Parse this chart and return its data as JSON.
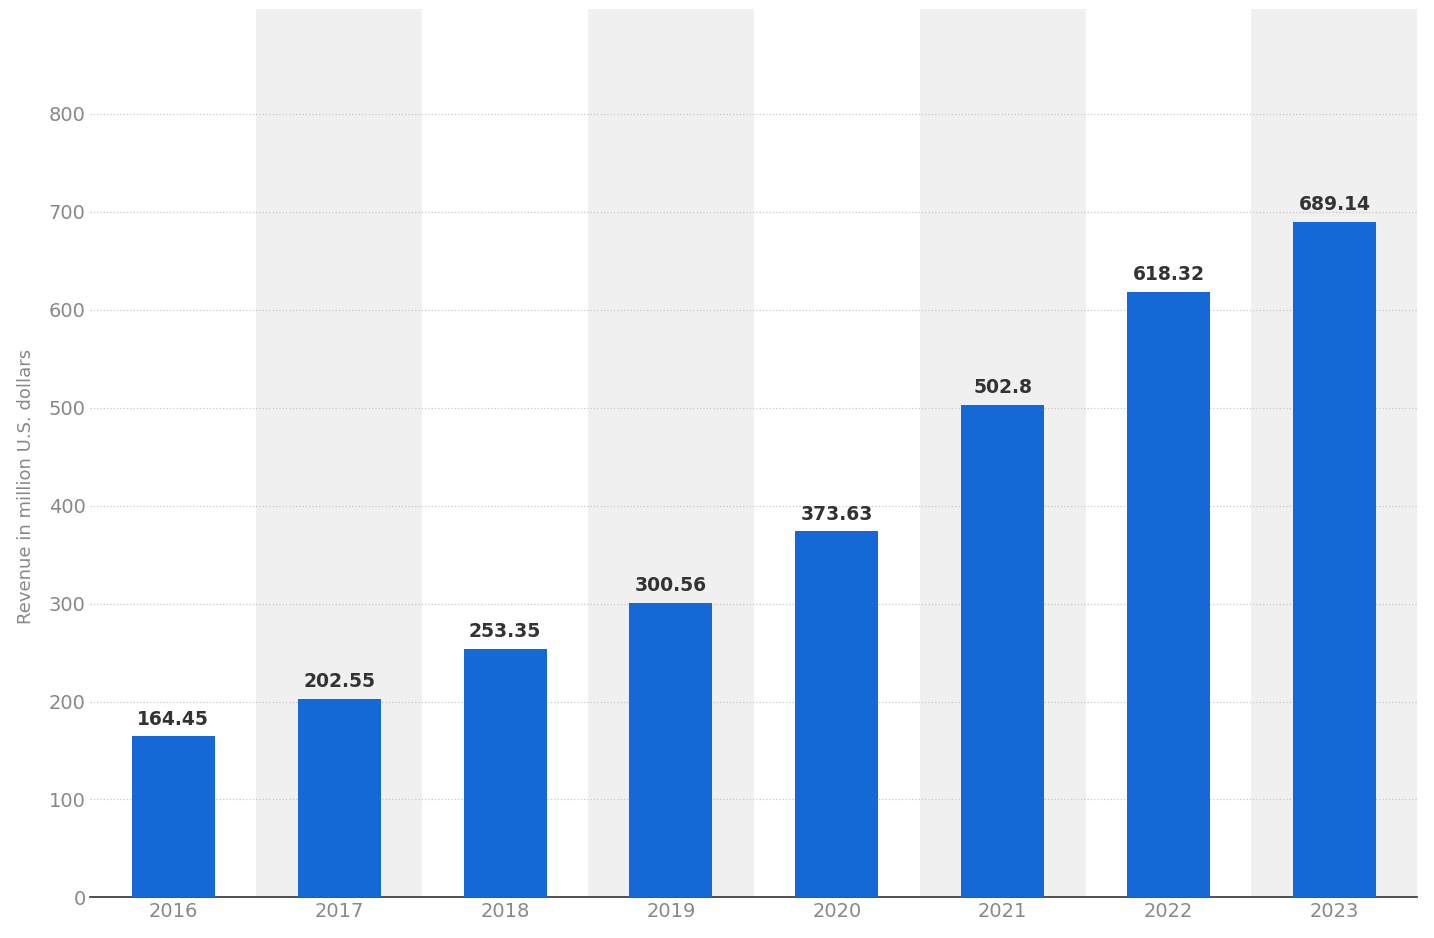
{
  "years": [
    "2016",
    "2017",
    "2018",
    "2019",
    "2020",
    "2021",
    "2022",
    "2023"
  ],
  "values": [
    164.45,
    202.55,
    253.35,
    300.56,
    373.63,
    502.8,
    618.32,
    689.14
  ],
  "bar_color": "#1469D6",
  "ylabel": "Revenue in million U.S. dollars",
  "ylim": [
    0,
    840
  ],
  "yticks": [
    0,
    100,
    200,
    300,
    400,
    500,
    600,
    700,
    800
  ],
  "bg_color": "#ffffff",
  "grid_color": "#c8c8c8",
  "label_color": "#888888",
  "bar_label_color": "#333333",
  "bar_label_fontsize": 13.5,
  "tick_fontsize": 14,
  "ylabel_fontsize": 13,
  "bar_width": 0.5,
  "alt_bg_color": "#f0f0f0",
  "alt_indices": [
    1,
    3,
    5,
    7
  ]
}
